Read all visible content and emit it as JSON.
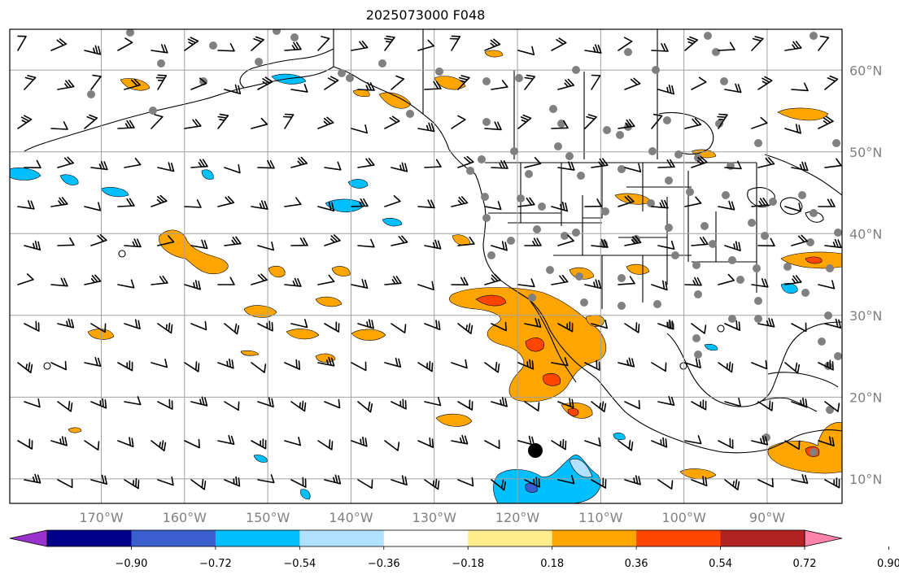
{
  "title": "2025073000 F048",
  "map": {
    "projection": "PlateCarree",
    "lon_range": [
      -181,
      -81
    ],
    "lat_range": [
      7,
      65
    ],
    "lat_ticks": [
      {
        "value": 10,
        "label": "10°N"
      },
      {
        "value": 20,
        "label": "20°N"
      },
      {
        "value": 30,
        "label": "30°N"
      },
      {
        "value": 40,
        "label": "40°N"
      },
      {
        "value": 50,
        "label": "50°N"
      },
      {
        "value": 60,
        "label": "60°N"
      }
    ],
    "lon_ticks": [
      {
        "value": -170,
        "label": "170°W"
      },
      {
        "value": -160,
        "label": "160°W"
      },
      {
        "value": -150,
        "label": "150°W"
      },
      {
        "value": -140,
        "label": "140°W"
      },
      {
        "value": -130,
        "label": "130°W"
      },
      {
        "value": -120,
        "label": "120°W"
      },
      {
        "value": -110,
        "label": "110°W"
      },
      {
        "value": -100,
        "label": "100°W"
      },
      {
        "value": -90,
        "label": "90°W"
      }
    ],
    "gridlines": true,
    "colors": {
      "land_outline": "#000000",
      "grid": "#a0a0a0",
      "station": "#808080",
      "barb": "#000000"
    }
  },
  "colorbar": {
    "colors": [
      "#9a32cd",
      "#00008b",
      "#3a5fcd",
      "#00bfff",
      "#b0e2ff",
      "#ffffff",
      "#ffec8b",
      "#ffa500",
      "#ff4500",
      "#b22222",
      "#ff82ab"
    ],
    "tick_labels": [
      "−0.90",
      "−0.72",
      "−0.54",
      "−0.36",
      "−0.18",
      "0.18",
      "0.36",
      "0.54",
      "0.72",
      "0.90"
    ]
  }
}
